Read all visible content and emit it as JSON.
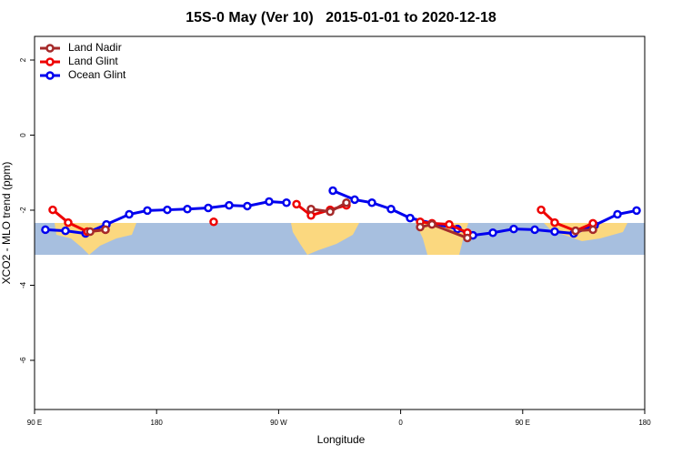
{
  "chart_data": {
    "type": "line",
    "title": "15S-0 May (Ver 10)   2015-01-01 to 2020-12-18",
    "x_label": "Longitude",
    "y_label": "XCO2 - MLO trend (ppm)",
    "xlim": [
      90,
      540
    ],
    "xticks": [
      {
        "value": 90,
        "label": "90 E"
      },
      {
        "value": 180,
        "label": "180"
      },
      {
        "value": 270,
        "label": "90 W"
      },
      {
        "value": 360,
        "label": "0"
      },
      {
        "value": 450,
        "label": "90 E"
      },
      {
        "value": 540,
        "label": "180"
      }
    ],
    "ylim": [
      -7.31,
      2.63
    ],
    "yticks": [
      2,
      0,
      -2,
      -4,
      -6
    ],
    "legend": "top-left",
    "series": [
      {
        "name": "Land Nadir",
        "color": "#a52a2a",
        "x": [
          131,
          142.3,
          null,
          293.9,
          308,
          320,
          null,
          374.4,
          383.1,
          409.2,
          null,
          489,
          501.8
        ],
        "values": [
          -2.57,
          -2.52,
          null,
          -1.97,
          -2.04,
          -1.8,
          null,
          -2.45,
          -2.38,
          -2.74,
          null,
          -2.55,
          -2.52
        ]
      },
      {
        "name": "Land Glint",
        "color": "#ee0000",
        "x": [
          103.4,
          114.8,
          128.9,
          142.3,
          null,
          222.1,
          null,
          283.2,
          293.9,
          308,
          320,
          null,
          374.4,
          383.1,
          395.8,
          409.2,
          null,
          463.6,
          473.6,
          489,
          501.8
        ],
        "values": [
          -1.99,
          -2.33,
          -2.57,
          -2.52,
          null,
          -2.31,
          null,
          -1.84,
          -2.14,
          -1.99,
          -1.87,
          null,
          -2.31,
          -2.35,
          -2.38,
          -2.6,
          null,
          -1.99,
          -2.33,
          -2.55,
          -2.35
        ]
      },
      {
        "name": "Ocean Glint",
        "color": "#0000ee",
        "x": [
          98,
          112.8,
          127.6,
          143,
          159.8,
          173.2,
          187.9,
          202.7,
          218.1,
          233.5,
          246.9,
          263,
          275.8,
          null,
          310,
          326.1,
          338.8,
          352.9,
          367,
          401.9,
          413.3,
          428,
          443.4,
          458.9,
          473.6,
          487.7,
          503.1,
          519.9,
          534
        ],
        "values": [
          -2.52,
          -2.55,
          -2.62,
          -2.38,
          -2.11,
          -2.01,
          -1.99,
          -1.97,
          -1.94,
          -1.87,
          -1.89,
          -1.77,
          -1.8,
          null,
          -1.48,
          -1.72,
          -1.8,
          -1.97,
          -2.21,
          -2.5,
          -2.67,
          -2.6,
          -2.5,
          -2.52,
          -2.57,
          -2.62,
          -2.4,
          -2.11,
          -2.01
        ]
      }
    ]
  }
}
